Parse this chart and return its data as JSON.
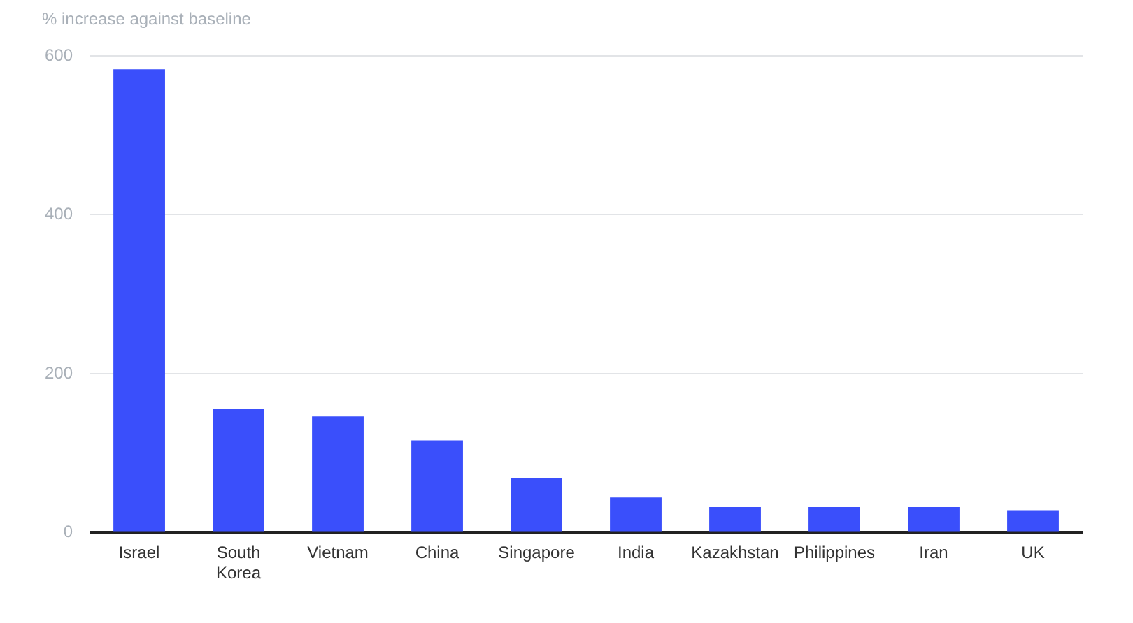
{
  "chart_data": {
    "type": "bar",
    "ylabel": "% increase against baseline",
    "categories": [
      "Israel",
      "South Korea",
      "Vietnam",
      "China",
      "Singapore",
      "India",
      "Kazakhstan",
      "Philippines",
      "Iran",
      "UK"
    ],
    "values": [
      583,
      155,
      146,
      116,
      69,
      44,
      32,
      32,
      32,
      28
    ],
    "color": "#3a4ffb",
    "ylim": [
      0,
      600
    ],
    "yticks": [
      0,
      200,
      400,
      600
    ],
    "grid": "y",
    "legend": false
  }
}
